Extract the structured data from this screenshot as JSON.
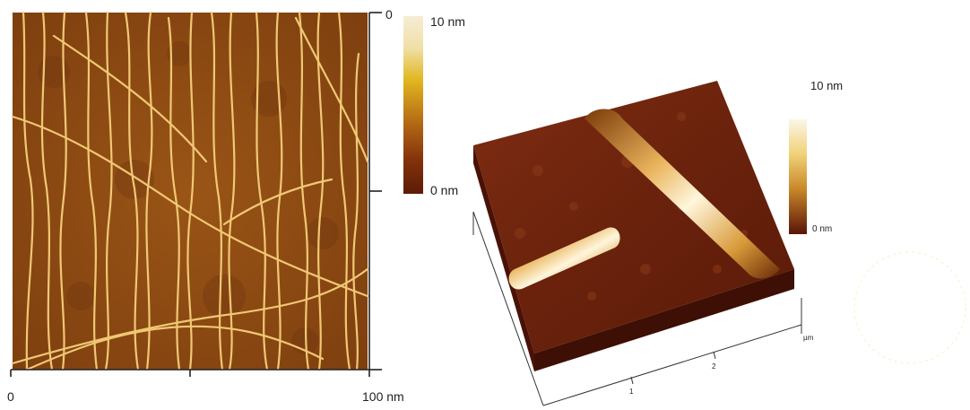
{
  "left_panel": {
    "colorbar": {
      "max_label": "10 nm",
      "min_label": "0 nm"
    },
    "x_axis": {
      "start_label": "0",
      "end_label": "100 nm"
    },
    "y_axis": {
      "start_label": "0"
    }
  },
  "right_panel": {
    "colorbar": {
      "max_label": "10 nm",
      "min_label": "0 nm"
    },
    "axis": {
      "tick_1": "1",
      "tick_2": "2",
      "unit": "µm"
    }
  },
  "colors": {
    "background_brown": "#8a4a12",
    "fiber": "#f6cf7a",
    "colorbar_top": "#f6ecd4",
    "colorbar_mid": "#e1b620",
    "colorbar_bottom": "#5c1a06",
    "surface_3d": "#6e2610"
  }
}
